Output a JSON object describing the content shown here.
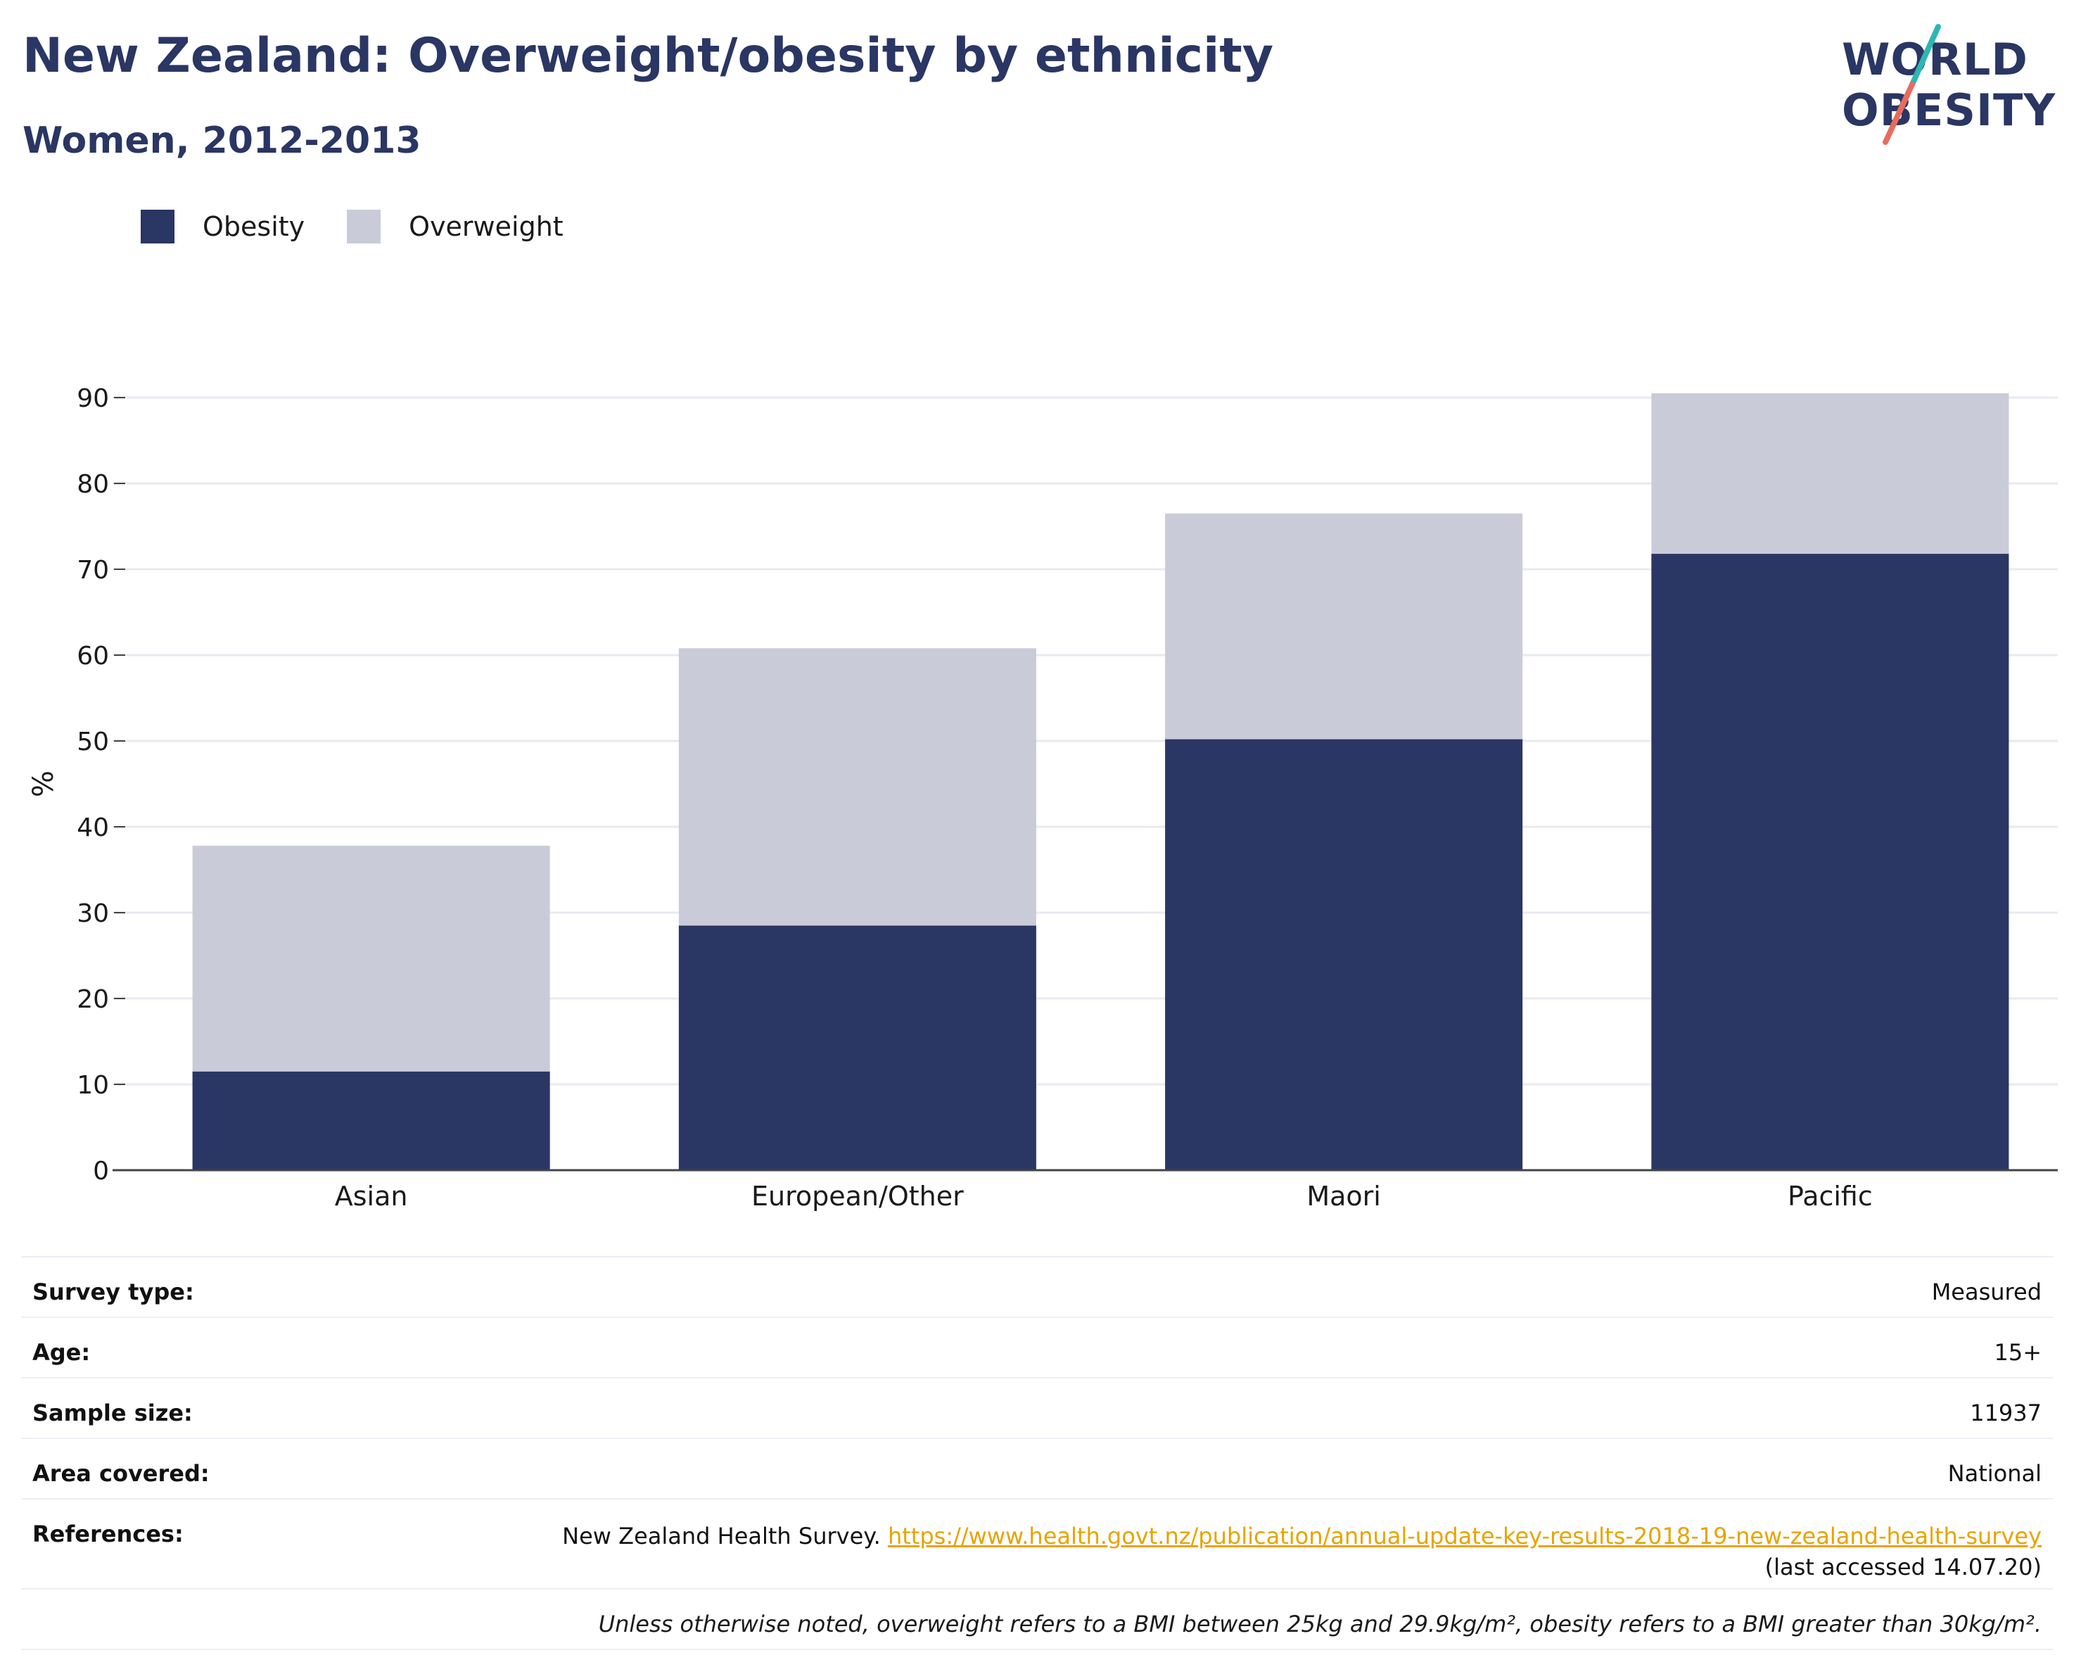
{
  "header": {
    "title": "New Zealand: Overweight/obesity by ethnicity",
    "subtitle": "Women, 2012-2013"
  },
  "logo": {
    "line1": "WORLD",
    "line2": "OBESITY",
    "accent_teal": "#2bb7b3",
    "accent_coral": "#e86c5d"
  },
  "legend": {
    "items": [
      {
        "label": "Obesity",
        "color": "#2a3663"
      },
      {
        "label": "Overweight",
        "color": "#c9ccd8"
      }
    ]
  },
  "chart_data": {
    "type": "bar",
    "stacked": true,
    "categories": [
      "Asian",
      "European/Other",
      "Maori",
      "Pacific"
    ],
    "series": [
      {
        "name": "Obesity",
        "values": [
          11.5,
          28.5,
          50.2,
          71.8
        ],
        "color": "#2a3663"
      },
      {
        "name": "Overweight",
        "values": [
          26.3,
          32.3,
          26.3,
          18.7
        ],
        "color": "#c9ccd8"
      }
    ],
    "ylabel": "%",
    "ylim": [
      0,
      90
    ],
    "yticks": [
      0,
      10,
      20,
      30,
      40,
      50,
      60,
      70,
      80,
      90
    ],
    "grid": true,
    "legend_position": "top-left"
  },
  "info": {
    "survey_type": {
      "label": "Survey type:",
      "value": "Measured"
    },
    "age": {
      "label": "Age:",
      "value": "15+"
    },
    "sample_size": {
      "label": "Sample size:",
      "value": "11937"
    },
    "area": {
      "label": "Area covered:",
      "value": "National"
    },
    "references": {
      "label": "References:",
      "prefix": "New Zealand Health Survey.",
      "link": "https://www.health.govt.nz/publication/annual-update-key-results-2018-19-new-zealand-health-survey",
      "suffix": "(last accessed 14.07.20)"
    },
    "note": "Unless otherwise noted, overweight refers to a BMI between 25kg and 29.9kg/m², obesity refers to a BMI greater than 30kg/m²."
  }
}
